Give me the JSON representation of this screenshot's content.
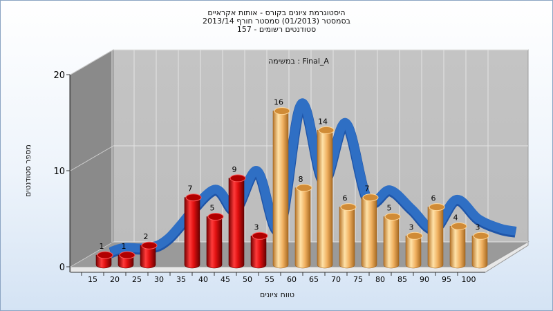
{
  "chart_data": {
    "type": "bar",
    "title": [
      "היסטוגרמת ציונים בקורס - אותות אקראיים",
      "בסמסטר  (01/2013)  סמסטר חורף 2013/14",
      "סטודנטים רשומים - 157"
    ],
    "subtitle": "במשימה : Final_A",
    "xlabel": "טווח ציונים",
    "ylabel": "מספר סטודנטים",
    "ylim": [
      0,
      20
    ],
    "yticks": [
      0,
      10,
      20
    ],
    "x_ticks": [
      "15",
      "20",
      "25",
      "30",
      "35",
      "40",
      "45",
      "50",
      "55",
      "60",
      "65",
      "70",
      "75",
      "80",
      "85",
      "90",
      "95",
      "100"
    ],
    "categories": [
      "15",
      "20",
      "25",
      "35",
      "40",
      "45",
      "50",
      "55",
      "60",
      "65",
      "70",
      "75",
      "80",
      "85",
      "90",
      "95",
      "100"
    ],
    "values": [
      1,
      1,
      2,
      7,
      5,
      9,
      3,
      16,
      8,
      14,
      6,
      7,
      5,
      3,
      6,
      4,
      3
    ],
    "bar_colors": [
      "red",
      "red",
      "red",
      "red",
      "red",
      "red",
      "red",
      "orange",
      "orange",
      "orange",
      "orange",
      "orange",
      "orange",
      "orange",
      "orange",
      "orange",
      "orange"
    ],
    "series_colors": {
      "red": "#d9121c",
      "orange": "#e6a44a",
      "ribbon": "#2f6fc4"
    },
    "grid": true
  }
}
